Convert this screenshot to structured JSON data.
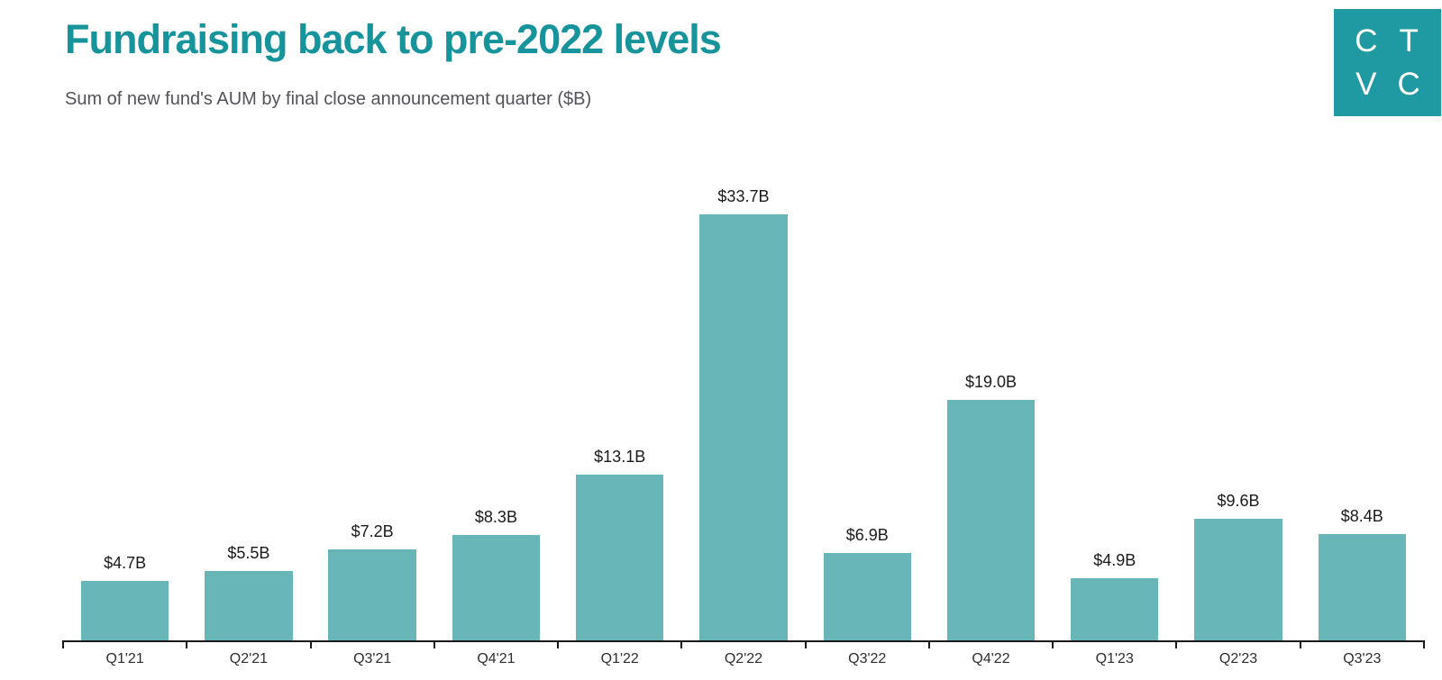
{
  "header": {
    "title": "Fundraising back to pre-2022 levels",
    "subtitle": "Sum of new fund's AUM by final close announcement quarter ($B)"
  },
  "logo": {
    "letters": [
      "C",
      "T",
      "V",
      "C"
    ],
    "bg_color": "#1f9aa2",
    "text_color": "#ffffff"
  },
  "colors": {
    "title": "#17939c",
    "subtitle": "#52525b",
    "bar": "#69b6b8",
    "axis": "#1a1a1a",
    "value_label": "#1a1a1a",
    "tick_label": "#2d2d2d"
  },
  "chart_data": {
    "type": "bar",
    "title": "Fundraising back to pre-2022 levels",
    "subtitle": "Sum of new fund's AUM by final close announcement quarter ($B)",
    "categories": [
      "Q1'21",
      "Q2'21",
      "Q3'21",
      "Q4'21",
      "Q1'22",
      "Q2'22",
      "Q3'22",
      "Q4'22",
      "Q1'23",
      "Q2'23",
      "Q3'23"
    ],
    "values": [
      4.7,
      5.5,
      7.2,
      8.3,
      13.1,
      33.7,
      6.9,
      19.0,
      4.9,
      9.6,
      8.4
    ],
    "value_labels": [
      "$4.7B",
      "$5.5B",
      "$7.2B",
      "$8.3B",
      "$13.1B",
      "$33.7B",
      "$6.9B",
      "$19.0B",
      "$4.9B",
      "$9.6B",
      "$8.4B"
    ],
    "xlabel": "",
    "ylabel": "",
    "unit": "$B",
    "ylim": [
      0,
      37.8
    ],
    "grid": false,
    "legend": "none",
    "bar_color": "#69b6b8"
  }
}
